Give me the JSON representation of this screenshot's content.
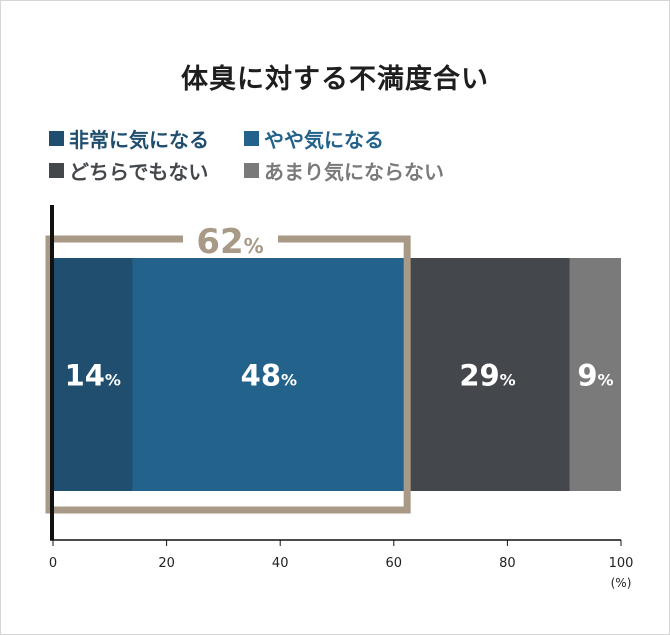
{
  "title": "体臭に対する不満度合い",
  "legend": [
    {
      "label": "非常に気になる",
      "color": "#1f4e6e"
    },
    {
      "label": "やや気になる",
      "color": "#23628a"
    },
    {
      "label": "どちらでもない",
      "color": "#44484c"
    },
    {
      "label": "あまり気にならない",
      "color": "#7a7a7a"
    }
  ],
  "highlight": {
    "value": "62",
    "unit": "%",
    "color": "#a89a87"
  },
  "chart_data": {
    "type": "bar",
    "orientation": "horizontal-stacked",
    "series": [
      {
        "name": "非常に気になる",
        "value": 14,
        "label": "14",
        "color": "#1f4e6e"
      },
      {
        "name": "やや気になる",
        "value": 48,
        "label": "48",
        "color": "#23628a"
      },
      {
        "name": "どちらでもない",
        "value": 29,
        "label": "29",
        "color": "#44484c"
      },
      {
        "name": "あまり気にならない",
        "value": 9,
        "label": "9",
        "color": "#7a7a7a"
      }
    ],
    "value_unit": "%",
    "xlim": [
      0,
      100
    ],
    "xticks": [
      "0",
      "20",
      "40",
      "60",
      "80",
      "100"
    ],
    "xunit": "(%)"
  }
}
